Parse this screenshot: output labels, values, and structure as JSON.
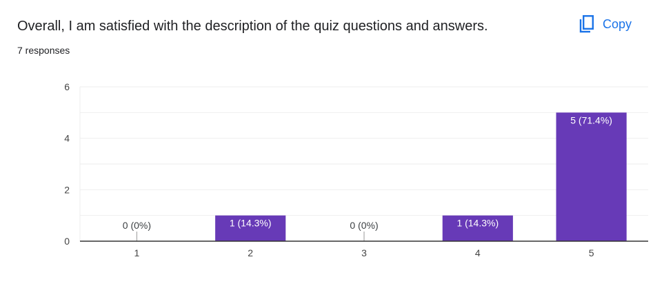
{
  "question": {
    "title": "Overall, I am satisfied with the description of the quiz questions and answers.",
    "response_count": "7 responses"
  },
  "actions": {
    "copy_label": "Copy",
    "copy_icon": "copy-icon"
  },
  "colors": {
    "bar": "#673ab7",
    "accent": "#1a73e8",
    "gridline": "#eeeeee",
    "baseline": "#333333"
  },
  "chart_data": {
    "type": "bar",
    "categories": [
      "1",
      "2",
      "3",
      "4",
      "5"
    ],
    "values": [
      0,
      1,
      0,
      1,
      5
    ],
    "data_labels": [
      "0 (0%)",
      "1 (14.3%)",
      "0 (0%)",
      "1 (14.3%)",
      "5 (71.4%)"
    ],
    "yticks": [
      0,
      2,
      4,
      6
    ],
    "ylim": [
      0,
      6
    ],
    "grid": true
  }
}
